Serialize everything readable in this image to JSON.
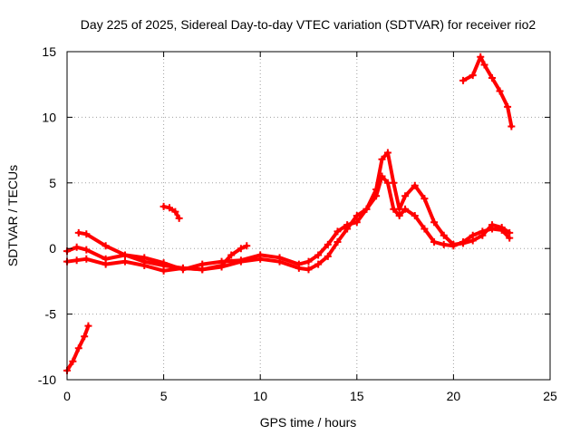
{
  "chart_data": {
    "type": "scatter",
    "title": "Day 225 of 2025, Sidereal Day-to-day VTEC variation (SDTVAR) for receiver rio2",
    "xlabel": "GPS time / hours",
    "ylabel": "SDTVAR / TECUs",
    "xlim": [
      0,
      25
    ],
    "ylim": [
      -10,
      15
    ],
    "xticks": [
      0,
      5,
      10,
      15,
      20,
      25
    ],
    "yticks": [
      -10,
      -5,
      0,
      5,
      10,
      15
    ],
    "grid": true,
    "marker": "plus",
    "color": "#ff0000",
    "series": [
      {
        "name": "segment-1",
        "x": [
          0.0,
          0.3,
          0.6,
          0.9,
          1.1
        ],
        "y": [
          -9.3,
          -8.6,
          -7.6,
          -6.7,
          -5.9
        ]
      },
      {
        "name": "segment-2",
        "x": [
          5.0,
          5.3,
          5.6,
          5.8
        ],
        "y": [
          3.2,
          3.1,
          2.8,
          2.3
        ]
      },
      {
        "name": "segment-3",
        "x": [
          0.0,
          0.5,
          1.0,
          2.0,
          3.0,
          4.0,
          5.0,
          6.0,
          7.0,
          8.0,
          9.0,
          10.0,
          11.0,
          12.0,
          12.5,
          13.0,
          13.5,
          14.0,
          14.5,
          15.0,
          15.5,
          16.0,
          16.3,
          16.6,
          16.9,
          17.2,
          17.5,
          18.0,
          18.5,
          19.0,
          19.5,
          20.0,
          20.5,
          21.0,
          21.5,
          22.0,
          22.5,
          22.9
        ],
        "y": [
          -1.0,
          -0.9,
          -0.8,
          -1.2,
          -1.0,
          -1.3,
          -1.7,
          -1.5,
          -1.6,
          -1.4,
          -1.0,
          -0.8,
          -1.0,
          -1.5,
          -1.6,
          -1.2,
          -0.6,
          0.5,
          1.5,
          2.5,
          3.0,
          4.0,
          5.5,
          5.0,
          3.0,
          2.5,
          3.0,
          2.5,
          1.5,
          0.5,
          0.3,
          0.2,
          0.5,
          1.0,
          1.3,
          1.5,
          1.4,
          0.8
        ]
      },
      {
        "name": "segment-4",
        "x": [
          0.0,
          0.5,
          1.0,
          2.0,
          3.0,
          4.0,
          5.0,
          6.0,
          7.0,
          8.0,
          9.0,
          10.0,
          11.0,
          12.0,
          12.5,
          13.0,
          13.5,
          14.0,
          14.5,
          15.0,
          15.5,
          16.0,
          16.3,
          16.6,
          16.9,
          17.2,
          17.5,
          18.0,
          18.5,
          19.0,
          19.5,
          20.0,
          20.5,
          21.0,
          21.5,
          22.0,
          22.5,
          22.9
        ],
        "y": [
          -0.2,
          0.1,
          -0.1,
          -0.8,
          -0.5,
          -0.7,
          -1.1,
          -1.6,
          -1.2,
          -1.0,
          -0.9,
          -0.5,
          -0.7,
          -1.2,
          -1.0,
          -0.5,
          0.3,
          1.3,
          1.8,
          2.0,
          3.0,
          4.5,
          6.8,
          7.3,
          5.0,
          3.0,
          4.0,
          4.8,
          3.8,
          2.0,
          1.0,
          0.3,
          0.4,
          0.6,
          1.0,
          1.8,
          1.6,
          1.2
        ]
      },
      {
        "name": "segment-5",
        "x": [
          0.6,
          1.0,
          2.0,
          3.0,
          4.0,
          5.0,
          6.0,
          7.0,
          8.0,
          8.5,
          9.0,
          9.3
        ],
        "y": [
          1.2,
          1.1,
          0.2,
          -0.5,
          -1.0,
          -1.3,
          -1.5,
          -1.6,
          -1.3,
          -0.5,
          0.0,
          0.2
        ]
      },
      {
        "name": "segment-6",
        "x": [
          20.5,
          21.0,
          21.4,
          21.6,
          22.0,
          22.4,
          22.8,
          23.0
        ],
        "y": [
          12.8,
          13.2,
          14.6,
          14.0,
          13.0,
          12.0,
          10.8,
          9.3
        ]
      }
    ]
  }
}
